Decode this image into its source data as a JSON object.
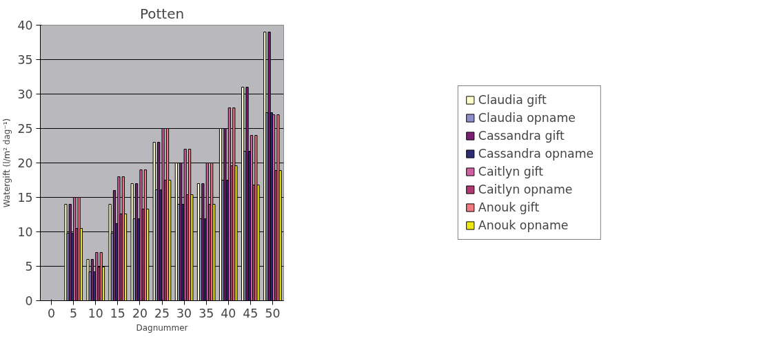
{
  "chart_data": {
    "type": "bar",
    "title": "Potten",
    "xlabel": "Dagnummer",
    "ylabel": "Watergift (l/m² dag⁻¹)",
    "categories": [
      "0",
      "5",
      "10",
      "15",
      "20",
      "25",
      "30",
      "35",
      "40",
      "45",
      "50"
    ],
    "ylim": [
      0,
      40
    ],
    "yticks": [
      0,
      5,
      10,
      15,
      20,
      25,
      30,
      35,
      40
    ],
    "grid": "y",
    "legend": "right",
    "series": [
      {
        "name": "Claudia gift",
        "color": "#ffffcc",
        "values": [
          null,
          14,
          6,
          14,
          17,
          23,
          20,
          17,
          25,
          31,
          39
        ]
      },
      {
        "name": "Claudia opname",
        "color": "#8e8ec8",
        "values": [
          null,
          9.8,
          4.2,
          9.8,
          11.9,
          16.1,
          14,
          11.9,
          17.5,
          21.7,
          27.3
        ]
      },
      {
        "name": "Cassandra gift",
        "color": "#7a2070",
        "values": [
          null,
          14,
          6,
          16,
          17,
          23,
          20,
          17,
          25,
          31,
          39
        ]
      },
      {
        "name": "Cassandra opname",
        "color": "#302c74",
        "values": [
          null,
          9.8,
          4.2,
          11.2,
          11.9,
          16.1,
          14,
          11.9,
          17.5,
          21.7,
          27.3
        ]
      },
      {
        "name": "Caitlyn gift",
        "color": "#d060a4",
        "values": [
          null,
          15,
          7,
          18,
          19,
          25,
          22,
          20,
          28,
          24,
          27
        ]
      },
      {
        "name": "Caitlyn opname",
        "color": "#b03a70",
        "values": [
          null,
          10.5,
          4.9,
          12.6,
          13.3,
          17.5,
          15.4,
          14,
          19.6,
          16.8,
          18.9
        ]
      },
      {
        "name": "Anouk gift",
        "color": "#f07880",
        "values": [
          null,
          15,
          7,
          18,
          19,
          25,
          22,
          20,
          28,
          24,
          27
        ]
      },
      {
        "name": "Anouk opname",
        "color": "#eee810",
        "values": [
          null,
          10.5,
          4.9,
          12.6,
          13.3,
          17.5,
          15.4,
          14,
          19.6,
          16.8,
          18.9
        ]
      }
    ]
  }
}
